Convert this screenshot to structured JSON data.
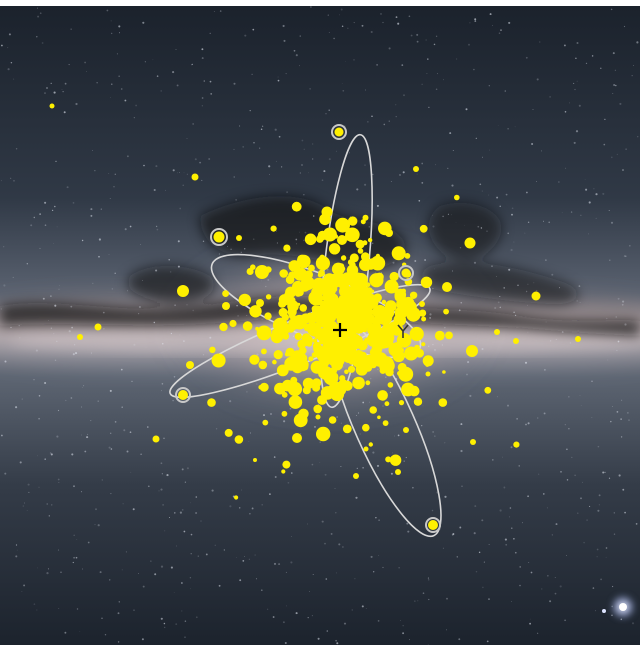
{
  "image": {
    "subject": "",
    "colors": {
      "sky_dark": "#1e2530",
      "sky_mid": "#46505e",
      "band_light": "#c9bcc0",
      "band_warm": "#a88a80",
      "dust": "#0d0f12",
      "star_yellow": "#fff000",
      "orbit_line": "#d8d8d8",
      "marker": "#000000"
    },
    "icons": [
      "galactic-center-cross-icon",
      "y-marker-icon",
      "companion-galaxy-icon"
    ]
  }
}
